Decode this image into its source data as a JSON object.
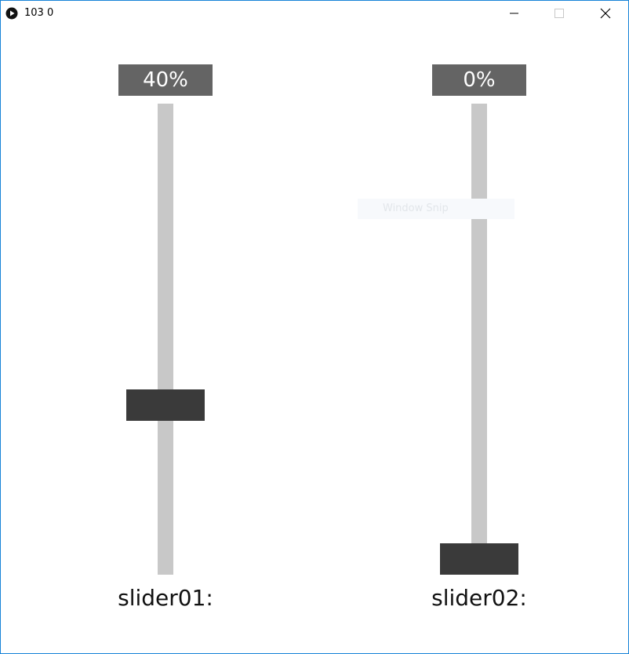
{
  "window": {
    "title": "103 0",
    "accent_border": "#1883d7",
    "controls": {
      "minimize_icon": "minimize-icon",
      "maximize_icon": "maximize-icon",
      "close_icon": "close-icon"
    }
  },
  "sliders": [
    {
      "name": "slider01",
      "label": "slider01:",
      "value_text": "40%",
      "value_fraction": 0.4,
      "value_box_color": "#646464",
      "handle_color": "#3a3a3a",
      "track_color": "#c8c8c8"
    },
    {
      "name": "slider02",
      "label": "slider02:",
      "value_text": "0%",
      "value_fraction": 0.0,
      "value_box_color": "#646464",
      "handle_color": "#3a3a3a",
      "track_color": "#c8c8c8"
    }
  ],
  "overlay": {
    "text": "Window Snip"
  }
}
